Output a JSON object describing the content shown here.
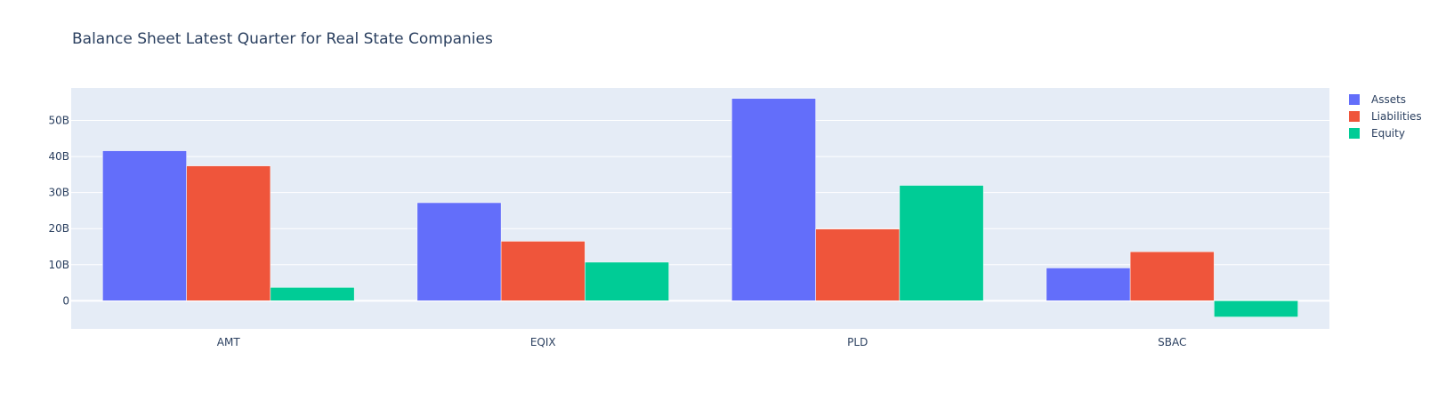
{
  "chart_data": {
    "type": "bar",
    "title": "Balance Sheet Latest Quarter for Real State Companies",
    "xlabel": "",
    "ylabel": "",
    "categories": [
      "AMT",
      "EQIX",
      "PLD",
      "SBAC"
    ],
    "series": [
      {
        "name": "Assets",
        "values": [
          41.6,
          27.2,
          56.1,
          9.1
        ],
        "color": "#636efa"
      },
      {
        "name": "Liabilities",
        "values": [
          37.4,
          16.5,
          19.9,
          13.6
        ],
        "color": "#ef553b"
      },
      {
        "name": "Equity",
        "values": [
          3.7,
          10.7,
          32.0,
          -4.5
        ],
        "color": "#00cc96"
      }
    ],
    "value_unit": "billions",
    "ylim": [
      -7.8,
      59
    ],
    "yticks": [
      0,
      10,
      20,
      30,
      40,
      50
    ],
    "ytick_labels": [
      "0",
      "10B",
      "20B",
      "30B",
      "40B",
      "50B"
    ],
    "grid": true,
    "legend_position": "top-right",
    "plot_bgcolor": "#e5ecf6"
  }
}
